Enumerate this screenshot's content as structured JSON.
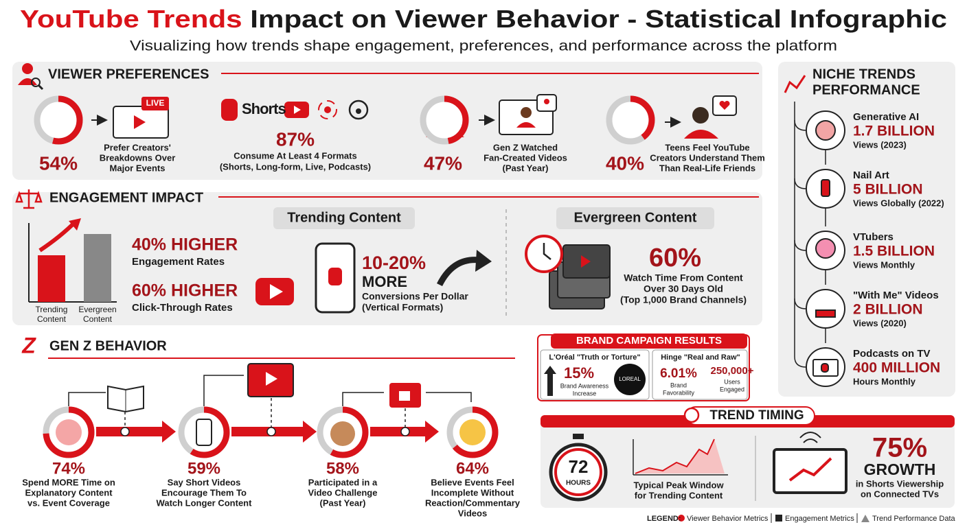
{
  "header": {
    "title_highlight": "YouTube Trends",
    "title_rest": "Impact on Viewer Behavior - Statistical Infographic",
    "subtitle": "Visualizing how trends shape engagement, preferences, and performance across the platform"
  },
  "viewer_preferences": {
    "heading": "VIEWER PREFERENCES",
    "live_badge": "LIVE",
    "shorts_logo": "Shorts",
    "items": [
      {
        "percent": {
          "value": 54,
          "label": "54%"
        },
        "lines": [
          "Prefer Creators'",
          "Breakdowns Over",
          "Major Events"
        ]
      },
      {
        "stat": "87%",
        "lines": [
          "Consume At Least 4 Formats",
          "(Shorts, Long-form, Live, Podcasts)"
        ]
      },
      {
        "percent": {
          "value": 47,
          "label": "47%"
        },
        "lines": [
          "Gen Z Watched",
          "Fan-Created Videos",
          "(Past Year)"
        ]
      },
      {
        "percent": {
          "value": 40,
          "label": "40%"
        },
        "lines": [
          "Teens Feel YouTube",
          "Creators Understand Them",
          "Than Real-Life Friends"
        ]
      }
    ]
  },
  "engagement_impact": {
    "heading": "ENGAGEMENT IMPACT",
    "bar_labels": [
      [
        "Trending",
        "Content"
      ],
      [
        "Evergreen",
        "Content"
      ]
    ],
    "stats": [
      {
        "stat": "40% HIGHER",
        "label": "Engagement Rates"
      },
      {
        "stat": "60% HIGHER",
        "label": "Click-Through Rates"
      }
    ],
    "trending": {
      "title": "Trending Content",
      "stat": "10-20%",
      "stat_word": "MORE",
      "lines": [
        "Conversions Per Dollar",
        "(Vertical Formats)"
      ]
    },
    "evergreen": {
      "title": "Evergreen Content",
      "stat": "60%",
      "lines": [
        "Watch Time From Content",
        "Over 30 Days Old",
        "(Top 1,000 Brand Channels)"
      ]
    }
  },
  "gen_z_behavior": {
    "heading": "GEN Z BEHAVIOR",
    "steps": [
      {
        "percent": {
          "value": 74,
          "label": "74%"
        },
        "lines": [
          "Spend MORE Time on",
          "Explanatory Content",
          "vs. Event Coverage"
        ]
      },
      {
        "percent": {
          "value": 59,
          "label": "59%"
        },
        "lines": [
          "Say Short Videos",
          "Encourage Them To",
          "Watch Longer Content"
        ]
      },
      {
        "percent": {
          "value": 58,
          "label": "58%"
        },
        "lines": [
          "Participated in a",
          "Video Challenge",
          "(Past Year)"
        ]
      },
      {
        "percent": {
          "value": 64,
          "label": "64%"
        },
        "lines": [
          "Believe Events Feel",
          "Incomplete Without",
          "Reaction/Commentary",
          "Videos"
        ]
      }
    ]
  },
  "niche_trends": {
    "heading": [
      "NICHE TRENDS",
      "PERFORMANCE"
    ],
    "items": [
      {
        "name": "Generative AI",
        "value": "1.7 BILLION",
        "note": "Views (2023)"
      },
      {
        "name": "Nail Art",
        "value": "5 BILLION",
        "note": "Views Globally (2022)"
      },
      {
        "name": "VTubers",
        "value": "1.5 BILLION",
        "note": "Views Monthly"
      },
      {
        "name": "\"With Me\" Videos",
        "value": "2 BILLION",
        "note": "Views (2020)"
      },
      {
        "name": "Podcasts on TV",
        "value": "400 MILLION",
        "note": "Hours Monthly"
      }
    ]
  },
  "brand_campaign": {
    "title": "BRAND CAMPAIGN RESULTS",
    "loreal": {
      "name": "L'Oréal \"Truth or Torture\"",
      "stat": "15%",
      "lines": [
        "Brand Awareness",
        "Increase"
      ],
      "logo": "LOREAL"
    },
    "hinge": {
      "name": "Hinge \"Real and Raw\"",
      "stat": "6.01%",
      "lines": [
        "Brand",
        "Favorability"
      ],
      "stat2": "250,000+",
      "lines2": [
        "Users",
        "Engaged"
      ]
    }
  },
  "trend_timing": {
    "heading": "TREND TIMING",
    "timer_value": "72",
    "timer_unit": "HOURS",
    "chart_caption": [
      "Typical Peak Window",
      "for Trending Content"
    ],
    "growth_stat": "75%",
    "growth_word": "GROWTH",
    "growth_lines": [
      "in Shorts Viewership",
      "on Connected TVs"
    ]
  },
  "legend": {
    "label": "LEGEND:",
    "items": [
      "Viewer Behavior Metrics",
      "Engagement Metrics",
      "Trend Performance Data"
    ]
  }
}
